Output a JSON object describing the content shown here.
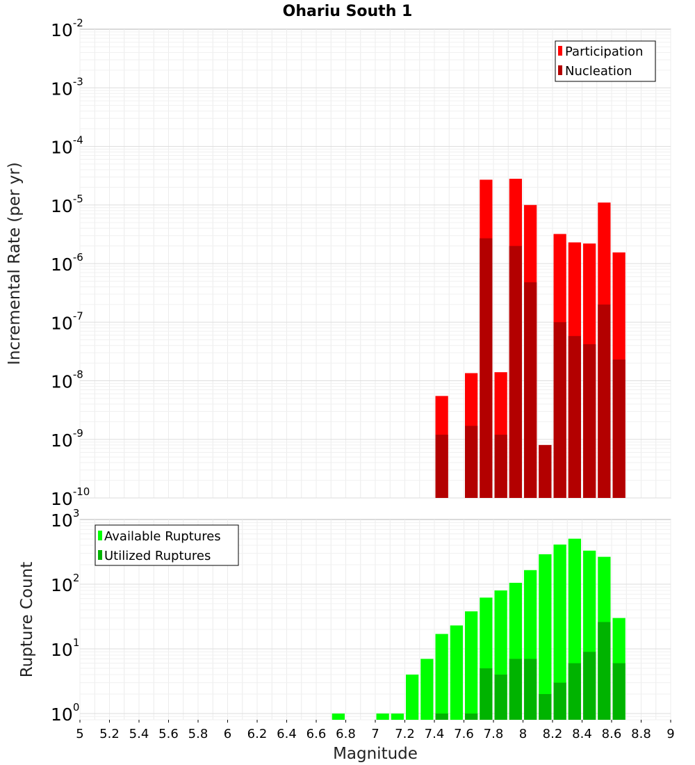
{
  "chart_data": [
    {
      "type": "bar",
      "title": "Ohariu South 1",
      "ylabel": "Incremental Rate (per yr)",
      "xlabel": "",
      "yscale": "log",
      "ylim": [
        1e-10,
        0.01
      ],
      "xlim": [
        5,
        9
      ],
      "bin_width": 0.1,
      "grid": true,
      "legend_position": "top-right",
      "x": [
        7.45,
        7.65,
        7.75,
        7.85,
        7.95,
        8.05,
        8.15,
        8.25,
        8.35,
        8.45,
        8.55,
        8.65
      ],
      "series": [
        {
          "name": "Participation",
          "color": "#ff0000",
          "values": [
            5.5e-09,
            1.35e-08,
            2.7e-05,
            1.4e-08,
            2.8e-05,
            1e-05,
            8e-10,
            3.2e-06,
            2.3e-06,
            2.2e-06,
            1.1e-05,
            1.55e-06
          ]
        },
        {
          "name": "Nucleation",
          "color": "#b30000",
          "values": [
            1.2e-09,
            1.7e-09,
            2.7e-06,
            1.2e-09,
            2e-06,
            4.8e-07,
            8e-10,
            1e-07,
            5.8e-08,
            4.2e-08,
            2e-07,
            2.3e-08
          ]
        }
      ],
      "ytick_exponents": [
        "-10",
        "-9",
        "-8",
        "-7",
        "-6",
        "-5",
        "-4",
        "-3",
        "-2"
      ]
    },
    {
      "type": "bar",
      "title": "",
      "ylabel": "Rupture Count",
      "xlabel": "Magnitude",
      "yscale": "log",
      "ylim": [
        0.8,
        1000
      ],
      "xlim": [
        5,
        9
      ],
      "bin_width": 0.1,
      "grid": true,
      "legend_position": "top-left",
      "x": [
        6.75,
        7.05,
        7.15,
        7.25,
        7.35,
        7.45,
        7.55,
        7.65,
        7.75,
        7.85,
        7.95,
        8.05,
        8.15,
        8.25,
        8.35,
        8.45,
        8.55,
        8.65
      ],
      "series": [
        {
          "name": "Available Ruptures",
          "color": "#00ff00",
          "values": [
            1,
            1,
            1,
            4,
            7,
            17,
            23,
            38,
            62,
            80,
            105,
            165,
            290,
            410,
            505,
            330,
            265,
            30
          ]
        },
        {
          "name": "Utilized Ruptures",
          "color": "#00b300",
          "values": [
            0,
            0,
            0,
            0,
            0,
            1,
            0,
            1,
            5,
            4,
            7,
            7,
            2,
            3,
            6,
            9,
            26,
            6
          ]
        }
      ],
      "ytick_exponents": [
        "0",
        "1",
        "2",
        "3"
      ]
    }
  ],
  "x_ticks": [
    "5",
    "5.2",
    "5.4",
    "5.6",
    "5.8",
    "6",
    "6.2",
    "6.4",
    "6.6",
    "6.8",
    "7",
    "7.2",
    "7.4",
    "7.6",
    "7.8",
    "8",
    "8.2",
    "8.4",
    "8.6",
    "8.8",
    "9"
  ]
}
